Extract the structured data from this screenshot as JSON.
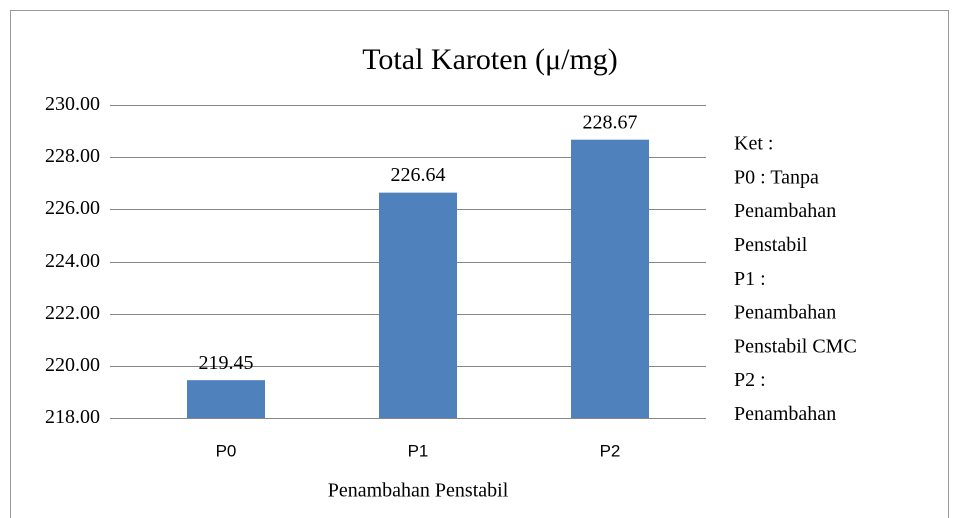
{
  "chart_data": {
    "type": "bar",
    "title": "Total Karoten (μ/mg)",
    "x_label": "Penambahan Penstabil",
    "categories": [
      "P0",
      "P1",
      "P2"
    ],
    "values": [
      219.45,
      226.64,
      228.67
    ],
    "color": "#4f81bd",
    "ylim": [
      218,
      230
    ],
    "yticks": [
      {
        "value": 218,
        "label": "218.00"
      },
      {
        "value": 220,
        "label": "220.00"
      },
      {
        "value": 222,
        "label": "222.00"
      },
      {
        "value": 224,
        "label": "224.00"
      },
      {
        "value": 226,
        "label": "226.00"
      },
      {
        "value": 228,
        "label": "228.00"
      },
      {
        "value": 230,
        "label": "230.00"
      }
    ],
    "grid": true,
    "annotation": [
      "Ket :",
      "P0 : Tanpa",
      "Penambahan",
      "Penstabil",
      "P1 :",
      "Penambahan",
      "Penstabil CMC",
      "P2 :",
      "Penambahan"
    ]
  }
}
